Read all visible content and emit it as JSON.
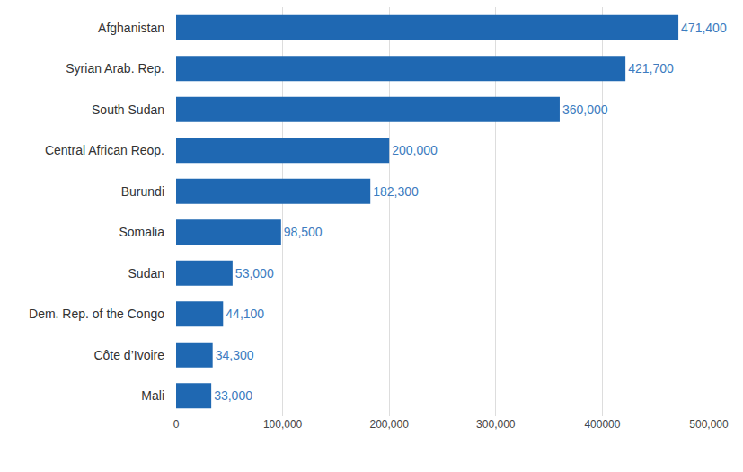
{
  "chart_data": {
    "type": "bar",
    "orientation": "horizontal",
    "categories": [
      "Afghanistan",
      "Syrian Arab. Rep.",
      "South Sudan",
      "Central African Reop.",
      "Burundi",
      "Somalia",
      "Sudan",
      "Dem. Rep. of the Congo",
      "Côte d’Ivoire",
      "Mali"
    ],
    "values": [
      471400,
      421700,
      360000,
      200000,
      182300,
      98500,
      53000,
      44100,
      34300,
      33000
    ],
    "value_labels": [
      "471,400",
      "421,700",
      "360,000",
      "200,000",
      "182,300",
      "98,500",
      "53,000",
      "44,100",
      "34,300",
      "33,000"
    ],
    "color": "#1f68b2",
    "xlim": [
      0,
      500000
    ],
    "xticks": [
      0,
      {
        "value": 100000,
        "label": "100,000"
      },
      {
        "value": 200000,
        "label": "200,000"
      },
      {
        "value": 300000,
        "label": "300,000"
      },
      400000,
      {
        "value": 500000,
        "label": "500,000"
      }
    ],
    "grid": true,
    "data_labels": true
  }
}
